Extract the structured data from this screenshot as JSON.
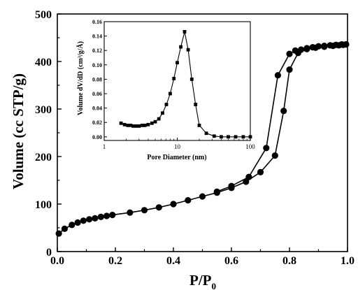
{
  "chart_data": [
    {
      "type": "line",
      "xlabel": "P/P",
      "xlabel_subscript": "0",
      "ylabel": "Volume (cc STP/g)",
      "xlim": [
        0,
        1.0
      ],
      "ylim": [
        0,
        500
      ],
      "x_ticks": [
        "0.0",
        "0.2",
        "0.4",
        "0.6",
        "0.8",
        "1.0"
      ],
      "y_ticks": [
        "0",
        "100",
        "200",
        "300",
        "400",
        "500"
      ],
      "grid": false,
      "legend": "none",
      "series": [
        {
          "branch": "adsorption",
          "marker": "circle",
          "x": [
            0.005,
            0.025,
            0.05,
            0.07,
            0.09,
            0.11,
            0.13,
            0.15,
            0.17,
            0.19,
            0.25,
            0.3,
            0.35,
            0.4,
            0.45,
            0.5,
            0.55,
            0.6,
            0.65,
            0.7,
            0.75,
            0.78,
            0.8,
            0.83,
            0.86,
            0.89,
            0.92,
            0.95,
            0.97,
            0.985,
            0.995
          ],
          "y": [
            38,
            48,
            56,
            61,
            65,
            68,
            70,
            73,
            75,
            77,
            82,
            87,
            93,
            100,
            108,
            116,
            124,
            134,
            147,
            167,
            202,
            296,
            383,
            418,
            426,
            429,
            431,
            433,
            434,
            435,
            436
          ]
        },
        {
          "branch": "desorption",
          "marker": "circle",
          "x": [
            0.995,
            0.98,
            0.96,
            0.94,
            0.92,
            0.9,
            0.88,
            0.86,
            0.84,
            0.82,
            0.8,
            0.76,
            0.72,
            0.66,
            0.6,
            0.55
          ],
          "y": [
            436,
            436,
            435,
            434,
            433,
            432,
            430,
            428,
            425,
            423,
            416,
            371,
            218,
            157,
            138,
            126
          ]
        }
      ]
    },
    {
      "type": "line",
      "inset": true,
      "xlabel": "Pore Diameter (nm)",
      "ylabel": "Volume dV/dD (cm³/g/Å)",
      "xscale": "log",
      "xlim": [
        1,
        100
      ],
      "ylim": [
        -0.005,
        0.16
      ],
      "x_ticks": [
        "1",
        "10",
        "100"
      ],
      "y_ticks": [
        "0.00",
        "0.02",
        "0.04",
        "0.06",
        "0.08",
        "0.10",
        "0.12",
        "0.14",
        "0.16"
      ],
      "grid": false,
      "legend": "none",
      "series": [
        {
          "marker": "square",
          "x": [
            1.7,
            1.9,
            2.1,
            2.3,
            2.5,
            2.7,
            3.0,
            3.3,
            3.6,
            4.0,
            4.5,
            5.0,
            5.6,
            6.3,
            7.1,
            8.0,
            9.0,
            10.0,
            11.2,
            12.6,
            14.1,
            15.8,
            17.8,
            20.0,
            25,
            32,
            40,
            50,
            63,
            80,
            100
          ],
          "y": [
            0.019,
            0.017,
            0.016,
            0.016,
            0.015,
            0.015,
            0.015,
            0.016,
            0.016,
            0.017,
            0.019,
            0.021,
            0.025,
            0.033,
            0.045,
            0.06,
            0.081,
            0.103,
            0.125,
            0.146,
            0.121,
            0.08,
            0.045,
            0.016,
            0.005,
            0.001,
            0.0,
            0.0,
            0.0,
            0.0,
            0.0
          ]
        }
      ]
    }
  ]
}
